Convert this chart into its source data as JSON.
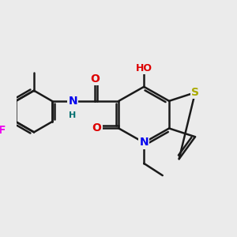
{
  "background_color": "#ebebeb",
  "bond_color": "#1a1a1a",
  "bond_width": 1.8,
  "dbo": 0.12,
  "atom_colors": {
    "C": "#1a1a1a",
    "N": "#0000ee",
    "O": "#dd0000",
    "S": "#aaaa00",
    "F": "#ee00ee",
    "H": "#007070"
  },
  "fs": 10
}
